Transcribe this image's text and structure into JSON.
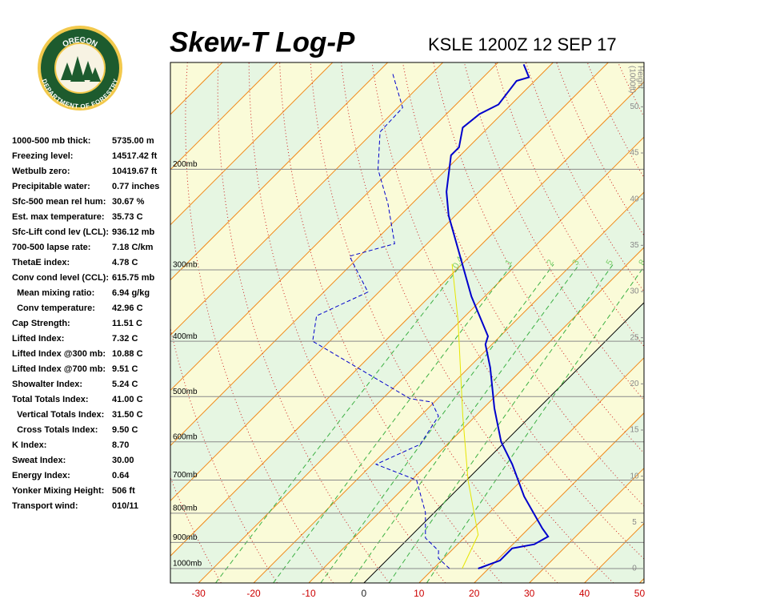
{
  "logo": {
    "top": "OREGON",
    "bottom": "DEPARTMENT OF FORESTRY"
  },
  "indices": [
    {
      "label": "1000-500 mb thick:",
      "value": "5735.00 m"
    },
    {
      "label": "Freezing level:",
      "value": "14517.42 ft"
    },
    {
      "label": "Wetbulb zero:",
      "value": "10419.67 ft"
    },
    {
      "label": "Precipitable water:",
      "value": "0.77 inches"
    },
    {
      "label": "Sfc-500 mean rel hum:",
      "value": "30.67 %"
    },
    {
      "label": "Est. max temperature:",
      "value": "35.73 C"
    },
    {
      "label": "Sfc-Lift cond lev (LCL):",
      "value": "936.12 mb"
    },
    {
      "label": "700-500 lapse rate:",
      "value": "7.18 C/km"
    },
    {
      "label": "ThetaE index:",
      "value": "4.78 C"
    },
    {
      "label": "Conv cond level (CCL):",
      "value": "615.75 mb"
    },
    {
      "label": "  Mean mixing ratio:",
      "value": "6.94 g/kg"
    },
    {
      "label": "  Conv temperature:",
      "value": "42.96 C"
    },
    {
      "label": "Cap Strength:",
      "value": "11.51 C"
    },
    {
      "label": "Lifted Index:",
      "value": "7.32 C"
    },
    {
      "label": "Lifted Index @300 mb:",
      "value": "10.88 C"
    },
    {
      "label": "Lifted Index @700 mb:",
      "value": "9.51 C"
    },
    {
      "label": "Showalter Index:",
      "value": "5.24 C"
    },
    {
      "label": "Total Totals Index:",
      "value": "41.00 C"
    },
    {
      "label": "  Vertical Totals Index:",
      "value": "31.50 C"
    },
    {
      "label": "  Cross Totals Index:",
      "value": "9.50 C"
    },
    {
      "label": "K Index:",
      "value": "8.70"
    },
    {
      "label": "Sweat Index:",
      "value": "30.00"
    },
    {
      "label": "Energy Index:",
      "value": "0.64"
    },
    {
      "label": "Yonker Mixing Height:",
      "value": "506 ft"
    },
    {
      "label": "Transport wind:",
      "value": "010/11"
    }
  ],
  "chart_data": {
    "type": "skewt",
    "title": "Skew-T Log-P",
    "subtitle": "KSLE 1200Z 12 SEP 17",
    "xlim": [
      -35.1,
      50.8
    ],
    "xticks": [
      -30,
      -20,
      -10,
      0,
      10,
      20,
      30,
      40,
      50
    ],
    "ylim": [
      1060,
      130
    ],
    "log": true,
    "yticks": [
      {
        "value": 200,
        "label": "200mb"
      },
      {
        "value": 300,
        "label": "300mb"
      },
      {
        "value": 400,
        "label": "400mb"
      },
      {
        "value": 500,
        "label": "500mb"
      },
      {
        "value": 600,
        "label": "600mb"
      },
      {
        "value": 700,
        "label": "700mb"
      },
      {
        "value": 800,
        "label": "800mb"
      },
      {
        "value": 900,
        "label": "900mb"
      },
      {
        "value": 1000,
        "label": "1000mb"
      }
    ],
    "y2label": [
      "Height",
      "(1000ft)"
    ],
    "y2lim": [
      -1.56,
      54.8
    ],
    "y2ticks": [
      0,
      5,
      10,
      15,
      20,
      25,
      30,
      35,
      40,
      45,
      50
    ],
    "mixing_ratios": [
      0.4,
      1,
      2,
      3,
      5,
      8
    ],
    "series": [
      {
        "color": "#0000cc",
        "dash": "none",
        "width": 2,
        "pressure": [
          1000,
          968,
          922,
          907,
          879,
          851,
          748,
          657,
          600,
          524,
          445,
          405,
          392,
          334,
          241,
          219,
          189,
          183,
          169,
          160,
          154,
          140,
          138,
          131
        ],
        "values": [
          18.1,
          20.6,
          20.6,
          23.9,
          25.0,
          22.5,
          13.4,
          5.4,
          -0.7,
          -8.0,
          -16.1,
          -21.2,
          -22.2,
          -32.4,
          -51.2,
          -55.9,
          -61.7,
          -61.7,
          -64.6,
          -64.0,
          -62.3,
          -63.3,
          -61.7,
          -65.0
        ]
      },
      {
        "color": "#0000cc",
        "dash": "5 3",
        "width": 1,
        "pressure": [
          1000,
          959,
          931,
          884,
          798,
          700,
          657,
          606,
          541,
          511,
          504,
          400,
          361,
          328,
          284,
          270,
          230,
          200,
          172,
          156,
          135
        ],
        "values": [
          12.9,
          9.0,
          7.7,
          3.0,
          -1.6,
          -9.1,
          -19.3,
          -14.9,
          -16.7,
          -20.5,
          -25.1,
          -53.1,
          -57.0,
          -52.0,
          -61.8,
          -55.9,
          -64.3,
          -72.4,
          -78.8,
          -79.1,
          -87.5
        ]
      },
      {
        "color": "#e6e600",
        "dash": "none",
        "width": 1,
        "pressure": [
          1000,
          873,
          701,
          541,
          367,
          293
        ],
        "values": [
          15.2,
          12.0,
          0.3,
          -12.3,
          -30.6,
          -41.8
        ]
      }
    ]
  }
}
